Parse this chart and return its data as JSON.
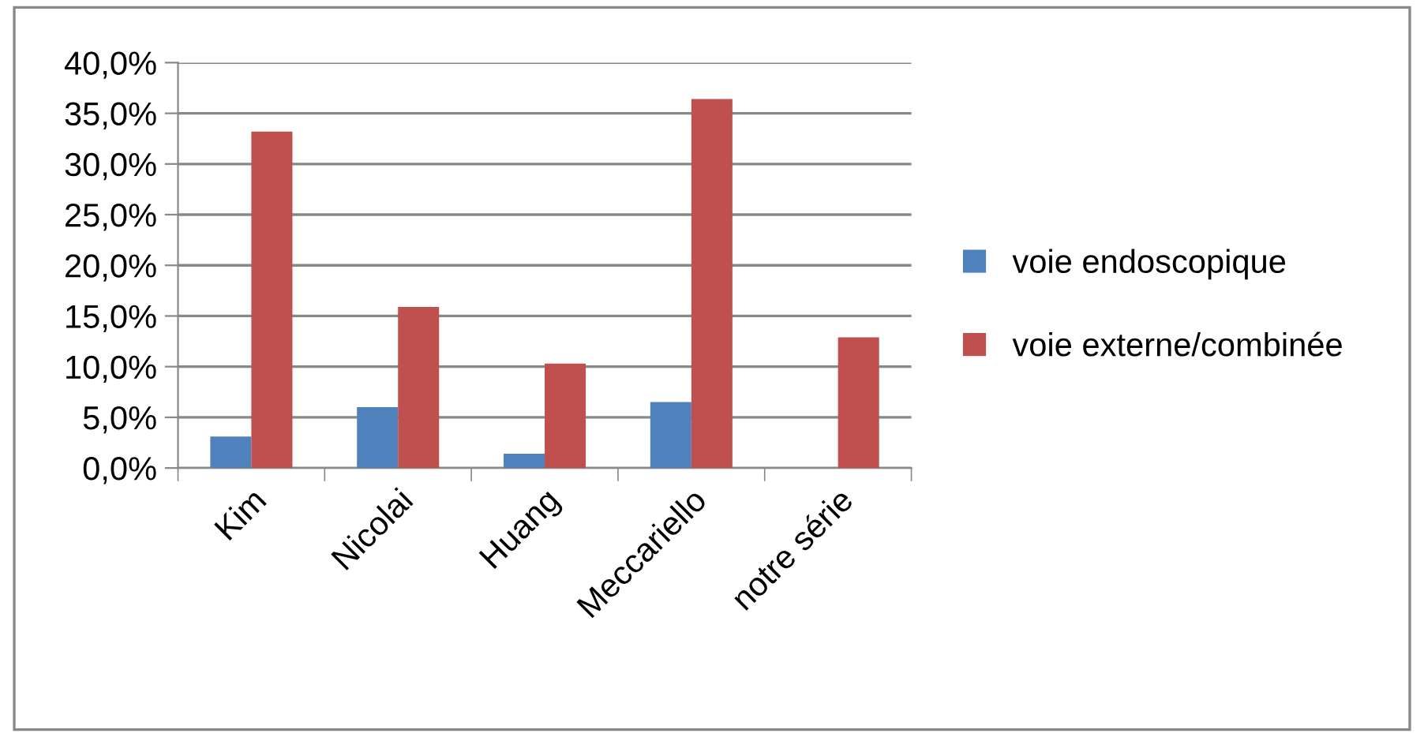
{
  "chart_data": {
    "type": "bar",
    "categories": [
      "Kim",
      "Nicolai",
      "Huang",
      "Meccariello",
      "notre série"
    ],
    "series": [
      {
        "name": "voie endoscopique",
        "color": "#4f81bd",
        "values": [
          3.1,
          6.0,
          1.4,
          6.5,
          null
        ]
      },
      {
        "name": "voie externe/combinée",
        "color": "#c0504d",
        "values": [
          33.2,
          15.9,
          10.3,
          36.4,
          12.9
        ]
      }
    ],
    "ylim": [
      0,
      40
    ],
    "yticks": [
      {
        "value": 0,
        "label": "0,0%"
      },
      {
        "value": 5,
        "label": "5,0%"
      },
      {
        "value": 10,
        "label": "10,0%"
      },
      {
        "value": 15,
        "label": "15,0%"
      },
      {
        "value": 20,
        "label": "20,0%"
      },
      {
        "value": 25,
        "label": "25,0%"
      },
      {
        "value": 30,
        "label": "30,0%"
      },
      {
        "value": 35,
        "label": "35,0%"
      },
      {
        "value": 40,
        "label": "40,0%"
      }
    ],
    "grid": "y",
    "legend": "right"
  }
}
